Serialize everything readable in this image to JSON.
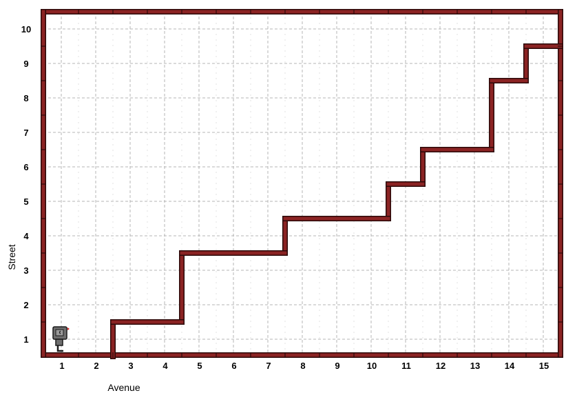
{
  "world": {
    "x_axis_label": "Avenue",
    "y_axis_label": "Street",
    "avenue_labels": [
      "1",
      "2",
      "3",
      "4",
      "5",
      "6",
      "7",
      "8",
      "9",
      "10",
      "11",
      "12",
      "13",
      "14",
      "15"
    ],
    "street_labels": [
      "1",
      "2",
      "3",
      "4",
      "5",
      "6",
      "7",
      "8",
      "9",
      "10"
    ],
    "avenues": 15,
    "streets": 10,
    "colors": {
      "wall": "#8b2323",
      "wall_outline": "#2b0a0a",
      "grid": "#b4b4b4",
      "robot_body": "#6e6e6e",
      "robot_outline": "#1a1a1a",
      "robot_marker": "#d62020"
    },
    "robot": {
      "avenue": 1,
      "street": 1,
      "facing": "east",
      "icon": "robot-icon"
    },
    "stair_walls": {
      "vertical": [
        {
          "after_avenue": 2,
          "from_street": 1,
          "to_street": 1
        },
        {
          "after_avenue": 4,
          "from_street": 2,
          "to_street": 3
        },
        {
          "after_avenue": 7,
          "from_street": 4,
          "to_street": 4
        },
        {
          "after_avenue": 10,
          "from_street": 5,
          "to_street": 5
        },
        {
          "after_avenue": 11,
          "from_street": 6,
          "to_street": 6
        },
        {
          "after_avenue": 13,
          "from_street": 7,
          "to_street": 8
        },
        {
          "after_avenue": 14,
          "from_street": 9,
          "to_street": 9
        }
      ],
      "horizontal": [
        {
          "above_street": 1,
          "from_avenue": 3,
          "to_avenue": 4
        },
        {
          "above_street": 3,
          "from_avenue": 5,
          "to_avenue": 7
        },
        {
          "above_street": 4,
          "from_avenue": 8,
          "to_avenue": 10
        },
        {
          "above_street": 5,
          "from_avenue": 11,
          "to_avenue": 11
        },
        {
          "above_street": 6,
          "from_avenue": 12,
          "to_avenue": 13
        },
        {
          "above_street": 8,
          "from_avenue": 14,
          "to_avenue": 14
        },
        {
          "above_street": 9,
          "from_avenue": 15,
          "to_avenue": 15
        }
      ]
    }
  }
}
